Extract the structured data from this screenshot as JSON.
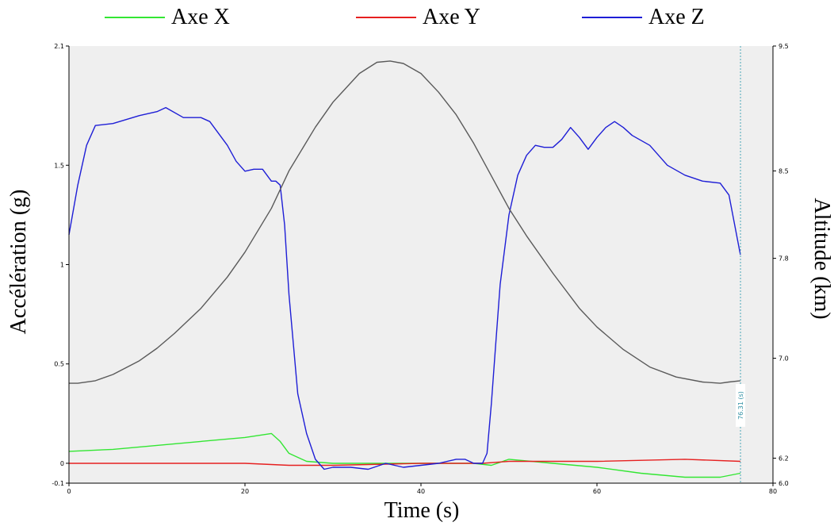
{
  "legend": [
    {
      "label": "Axe X",
      "color": "#33e633"
    },
    {
      "label": "Axe Y",
      "color": "#e62020"
    },
    {
      "label": "Axe Z",
      "color": "#1e1ed6"
    }
  ],
  "chart_data": {
    "type": "line",
    "xlabel": "Time (s)",
    "ylabel": "Accélération (g)",
    "y2label": "Altitude (km)",
    "xlim": [
      0,
      80
    ],
    "ylim": [
      -0.1,
      2.1
    ],
    "y2lim": [
      6.0,
      9.5
    ],
    "x_ticks": [
      "0",
      "20",
      "40",
      "60",
      "80"
    ],
    "y_ticks": [
      "2.1",
      "1.5",
      "1",
      "0.5",
      "0",
      "-0.1"
    ],
    "y2_ticks": [
      "9.5",
      "8.5",
      "7.8",
      "7.0",
      "6.2",
      "6.0"
    ],
    "grid": false,
    "legend_position": "top",
    "background": "#efefef",
    "marker": {
      "x": 76.31,
      "label": "76.31 (s)"
    },
    "series": [
      {
        "name": "Axe X",
        "color": "#33e633",
        "axis": "left",
        "x": [
          0,
          5,
          10,
          15,
          20,
          23,
          24,
          25,
          27,
          30,
          40,
          46,
          48,
          50,
          55,
          60,
          65,
          70,
          74,
          76.3
        ],
        "y": [
          0.06,
          0.07,
          0.09,
          0.11,
          0.13,
          0.15,
          0.11,
          0.05,
          0.01,
          0.0,
          0.0,
          0.0,
          -0.01,
          0.02,
          0.0,
          -0.02,
          -0.05,
          -0.07,
          -0.07,
          -0.05
        ]
      },
      {
        "name": "Axe Y",
        "color": "#e62020",
        "axis": "left",
        "x": [
          0,
          10,
          20,
          25,
          30,
          40,
          47,
          50,
          60,
          70,
          76.3
        ],
        "y": [
          0.0,
          0.0,
          0.0,
          -0.01,
          -0.01,
          0.0,
          0.0,
          0.01,
          0.01,
          0.02,
          0.01
        ]
      },
      {
        "name": "Axe Z",
        "color": "#1e1ed6",
        "axis": "left",
        "x": [
          0,
          1,
          2,
          3,
          5,
          8,
          10,
          11,
          13,
          15,
          16,
          18,
          19,
          20,
          21,
          22,
          23,
          23.5,
          24,
          24.5,
          25,
          26,
          27,
          28,
          29,
          30,
          32,
          34,
          36,
          38,
          40,
          42,
          44,
          45,
          46,
          47,
          47.5,
          48,
          48.5,
          49,
          50,
          51,
          52,
          53,
          54,
          55,
          56,
          57,
          58,
          59,
          60,
          61,
          62,
          63,
          64,
          66,
          68,
          70,
          72,
          74,
          75,
          76.3
        ],
        "y": [
          1.15,
          1.4,
          1.6,
          1.7,
          1.71,
          1.75,
          1.77,
          1.79,
          1.74,
          1.74,
          1.72,
          1.6,
          1.52,
          1.47,
          1.48,
          1.48,
          1.42,
          1.42,
          1.4,
          1.2,
          0.85,
          0.35,
          0.15,
          0.02,
          -0.03,
          -0.02,
          -0.02,
          -0.03,
          0.0,
          -0.02,
          -0.01,
          0.0,
          0.02,
          0.02,
          0.0,
          0.0,
          0.05,
          0.3,
          0.6,
          0.9,
          1.25,
          1.45,
          1.55,
          1.6,
          1.59,
          1.59,
          1.63,
          1.69,
          1.64,
          1.58,
          1.64,
          1.69,
          1.72,
          1.69,
          1.65,
          1.6,
          1.5,
          1.45,
          1.42,
          1.41,
          1.35,
          1.05
        ]
      },
      {
        "name": "Altitude",
        "color": "#5a5a5a",
        "axis": "right",
        "x": [
          0,
          1,
          3,
          5,
          8,
          10,
          12,
          15,
          18,
          20,
          23,
          25,
          28,
          30,
          33,
          35,
          36.5,
          38,
          40,
          42,
          44,
          46,
          48,
          50,
          52,
          55,
          58,
          60,
          63,
          66,
          69,
          72,
          74,
          75,
          76.3
        ],
        "y": [
          6.8,
          6.8,
          6.82,
          6.87,
          6.98,
          7.08,
          7.2,
          7.4,
          7.65,
          7.85,
          8.2,
          8.5,
          8.85,
          9.05,
          9.28,
          9.37,
          9.38,
          9.36,
          9.28,
          9.13,
          8.95,
          8.72,
          8.46,
          8.2,
          7.98,
          7.68,
          7.4,
          7.25,
          7.07,
          6.93,
          6.85,
          6.81,
          6.8,
          6.81,
          6.82
        ]
      }
    ]
  }
}
